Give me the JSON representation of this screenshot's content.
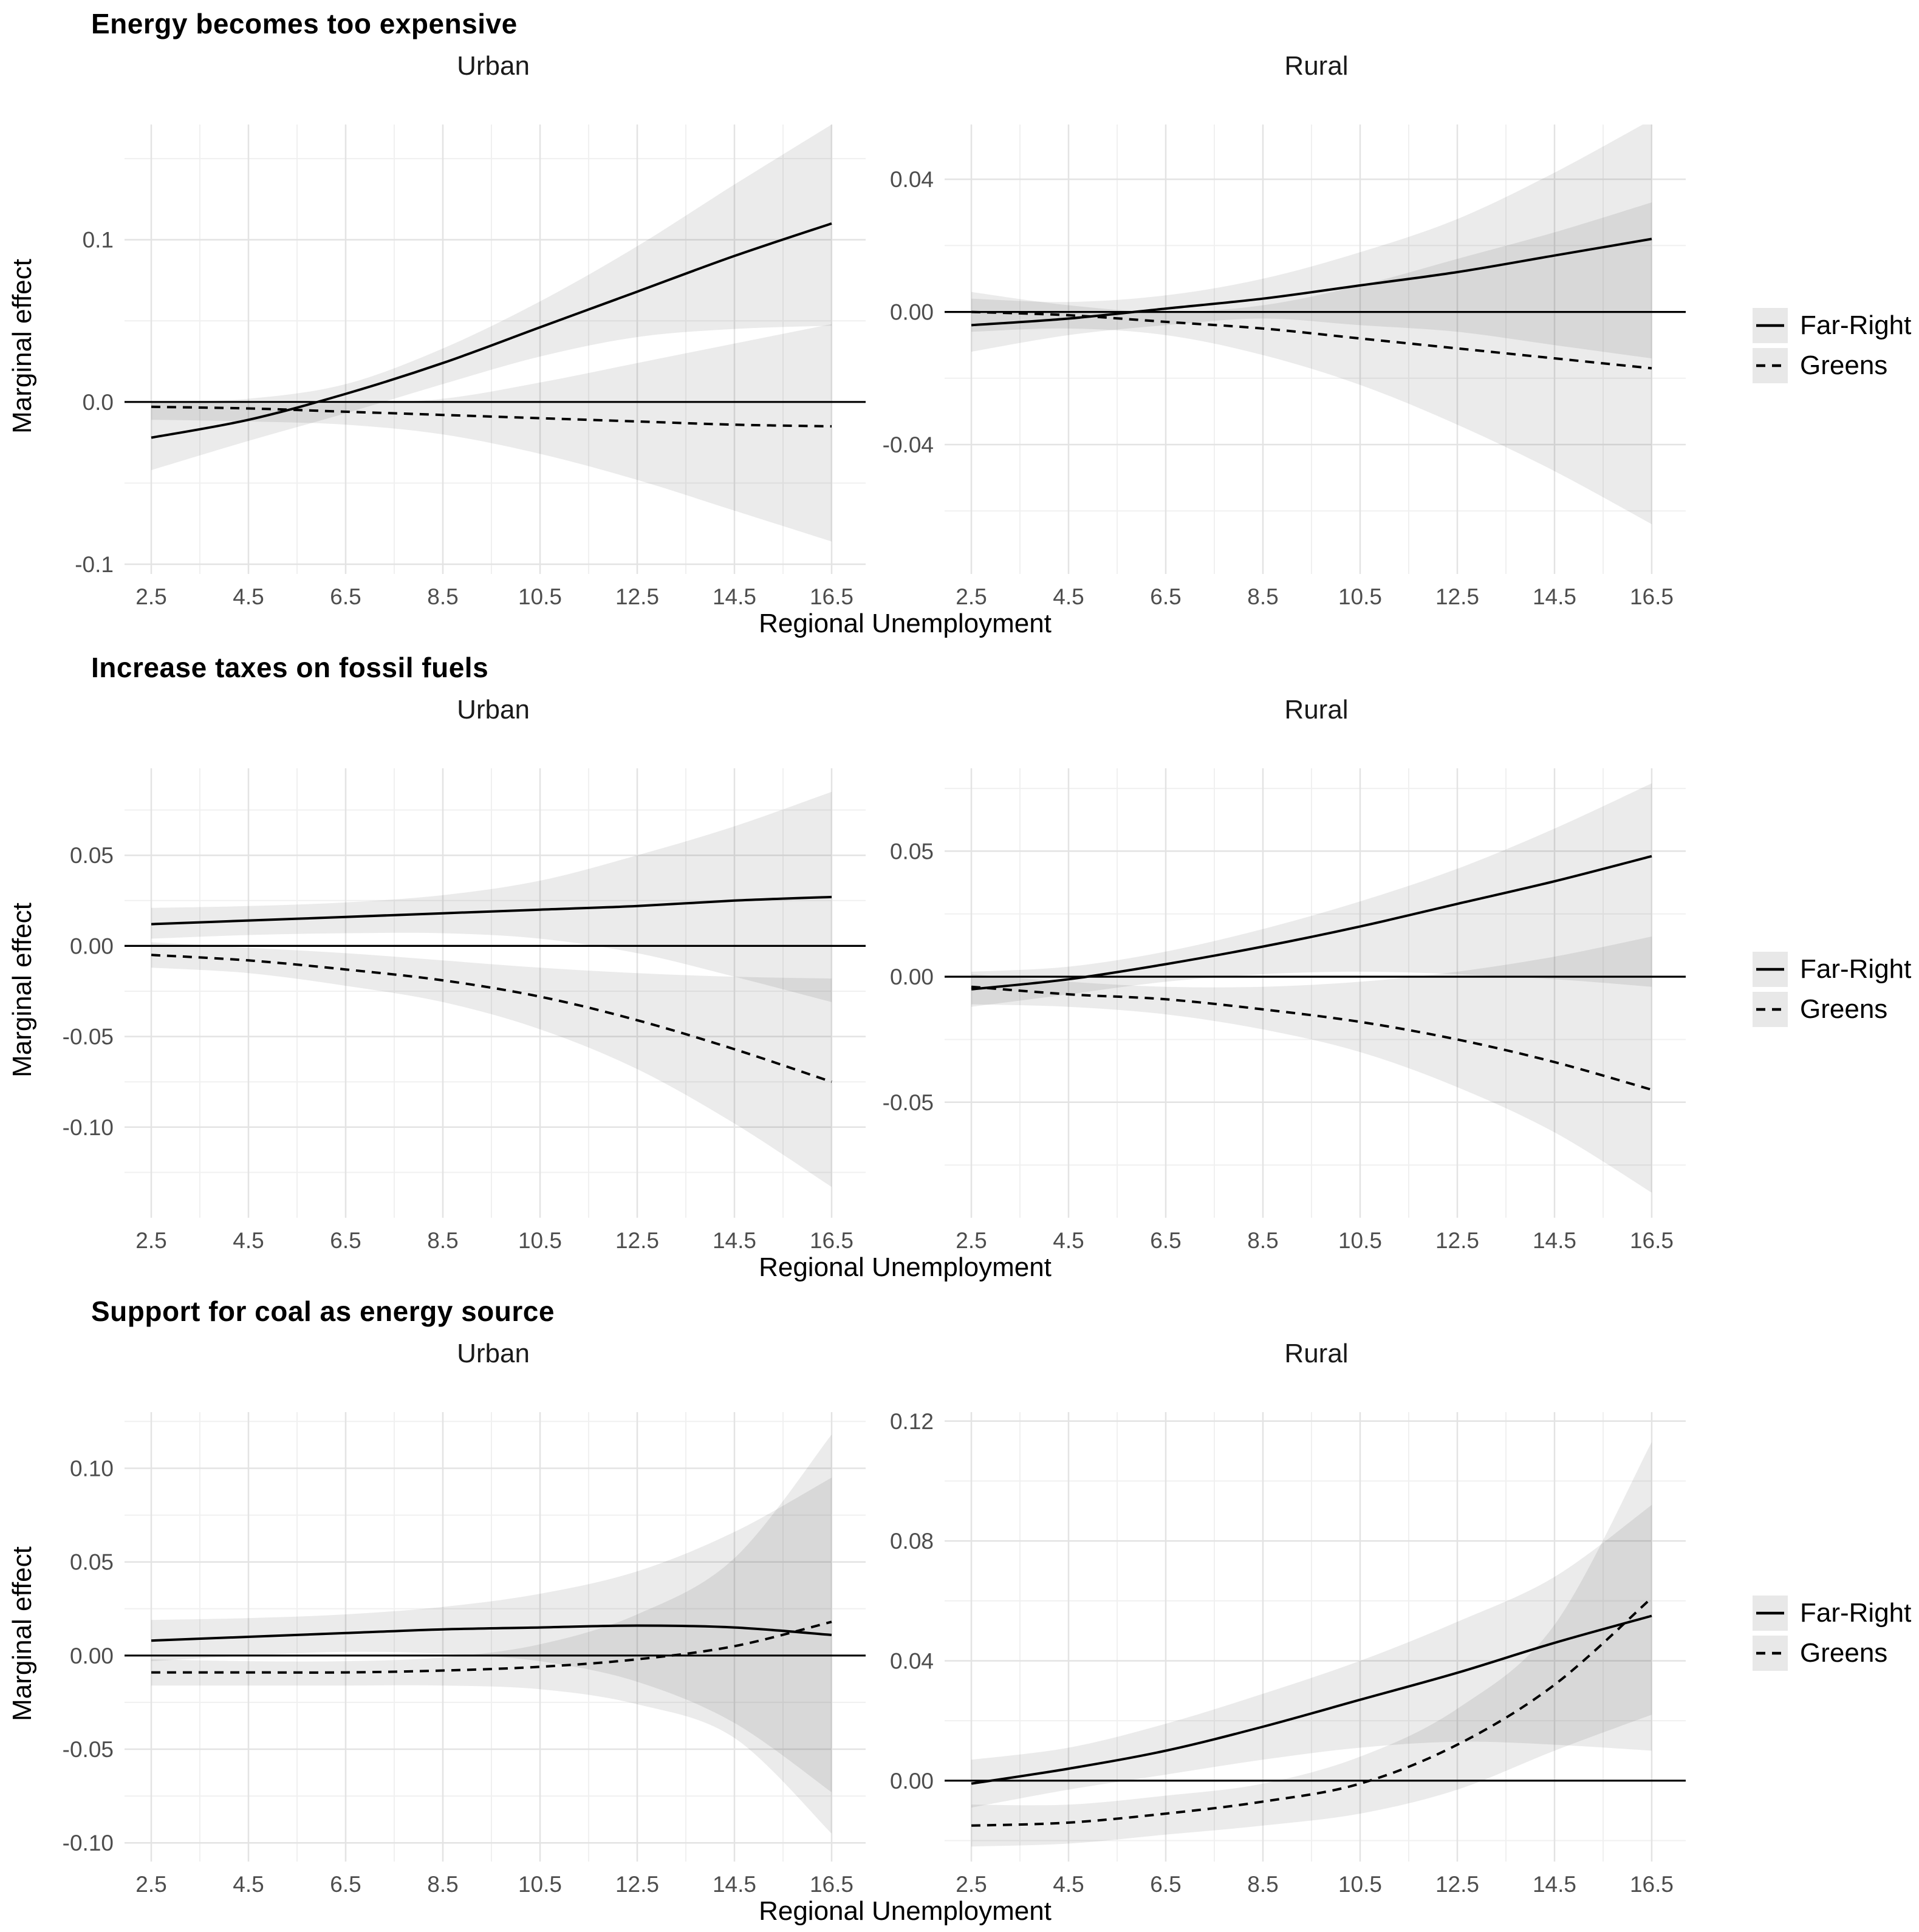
{
  "styles": {
    "background": "#ffffff",
    "line_color": "#000000",
    "ribbon_color": "#1a1a1a",
    "ribbon_opacity": 0.085,
    "grid_major": "#e3e3e3",
    "grid_minor": "#f0f0f0",
    "tick_text": "#4d4d4d",
    "legend_key_bg": "#e8e8e8"
  },
  "chart_data": [
    {
      "type": "line",
      "title": "Energy becomes too expensive",
      "xlabel": "Regional Unemployment",
      "ylabel": "Marginal effect",
      "legend": [
        {
          "name": "Far-Right",
          "style": "solid"
        },
        {
          "name": "Greens",
          "style": "dashed"
        }
      ],
      "x": [
        2.5,
        4.5,
        6.5,
        8.5,
        10.5,
        12.5,
        14.5,
        16.5
      ],
      "x_tick_labels": [
        "2.5",
        "4.5",
        "6.5",
        "8.5",
        "10.5",
        "12.5",
        "14.5",
        "16.5"
      ],
      "x_minor": [
        3.5,
        5.5,
        7.5,
        9.5,
        11.5,
        13.5,
        15.5
      ],
      "panels": [
        {
          "title": "Urban",
          "y_domain": [
            -0.106,
            0.171
          ],
          "y_ticks": [
            {
              "label": "0.1",
              "value": 0.1
            },
            {
              "label": "0.0",
              "value": 0.0
            },
            {
              "label": "-0.1",
              "value": -0.1
            }
          ],
          "y_minor": [
            0.15,
            0.05,
            -0.05
          ],
          "series": [
            {
              "name": "Far-Right",
              "dash": false,
              "y": [
                -0.022,
                -0.011,
                0.005,
                0.024,
                0.046,
                0.068,
                0.09,
                0.11
              ],
              "hi": [
                0.0,
                0.002,
                0.011,
                0.033,
                0.062,
                0.096,
                0.134,
                0.171
              ],
              "lo": [
                -0.042,
                -0.024,
                -0.007,
                0.011,
                0.028,
                0.04,
                0.045,
                0.047
              ]
            },
            {
              "name": "Greens",
              "dash": true,
              "y": [
                -0.003,
                -0.004,
                -0.006,
                -0.008,
                -0.01,
                -0.012,
                -0.014,
                -0.015
              ],
              "hi": [
                0.0,
                -0.001,
                -0.001,
                0.002,
                0.012,
                0.024,
                0.036,
                0.048
              ],
              "lo": [
                -0.011,
                -0.012,
                -0.014,
                -0.02,
                -0.032,
                -0.048,
                -0.067,
                -0.086
              ]
            }
          ]
        },
        {
          "title": "Rural",
          "y_domain": [
            -0.079,
            0.0565
          ],
          "y_ticks": [
            {
              "label": "0.04",
              "value": 0.04
            },
            {
              "label": "0.00",
              "value": 0.0
            },
            {
              "label": "-0.04",
              "value": -0.04
            }
          ],
          "y_minor": [
            0.02,
            -0.02,
            -0.06
          ],
          "series": [
            {
              "name": "Far-Right",
              "dash": false,
              "y": [
                -0.004,
                -0.002,
                0.001,
                0.004,
                0.008,
                0.012,
                0.017,
                0.022
              ],
              "hi": [
                0.004,
                0.003,
                0.005,
                0.01,
                0.018,
                0.028,
                0.042,
                0.058
              ],
              "lo": [
                -0.012,
                -0.007,
                -0.004,
                -0.002,
                -0.004,
                -0.006,
                -0.01,
                -0.014
              ]
            },
            {
              "name": "Greens",
              "dash": true,
              "y": [
                0.0,
                -0.001,
                -0.003,
                -0.005,
                -0.008,
                -0.011,
                -0.014,
                -0.017
              ],
              "hi": [
                0.006,
                0.002,
                0.0,
                0.002,
                0.008,
                0.016,
                0.024,
                0.033
              ],
              "lo": [
                -0.006,
                -0.005,
                -0.007,
                -0.013,
                -0.022,
                -0.034,
                -0.048,
                -0.064
              ]
            }
          ]
        }
      ]
    },
    {
      "type": "line",
      "title": "Increase taxes on fossil fuels",
      "xlabel": "Regional Unemployment",
      "ylabel": "Marginal effect",
      "legend": [
        {
          "name": "Far-Right",
          "style": "solid"
        },
        {
          "name": "Greens",
          "style": "dashed"
        }
      ],
      "x": [
        2.5,
        4.5,
        6.5,
        8.5,
        10.5,
        12.5,
        14.5,
        16.5
      ],
      "x_tick_labels": [
        "2.5",
        "4.5",
        "6.5",
        "8.5",
        "10.5",
        "12.5",
        "14.5",
        "16.5"
      ],
      "x_minor": [
        3.5,
        5.5,
        7.5,
        9.5,
        11.5,
        13.5,
        15.5
      ],
      "panels": [
        {
          "title": "Urban",
          "y_domain": [
            -0.15,
            0.098
          ],
          "y_ticks": [
            {
              "label": "0.05",
              "value": 0.05
            },
            {
              "label": "0.00",
              "value": 0.0
            },
            {
              "label": "-0.05",
              "value": -0.05
            },
            {
              "label": "-0.10",
              "value": -0.1
            }
          ],
          "y_minor": [
            0.075,
            0.025,
            -0.025,
            -0.075,
            -0.125
          ],
          "series": [
            {
              "name": "Far-Right",
              "dash": false,
              "y": [
                0.012,
                0.014,
                0.016,
                0.018,
                0.02,
                0.022,
                0.025,
                0.027
              ],
              "hi": [
                0.021,
                0.022,
                0.024,
                0.028,
                0.036,
                0.05,
                0.066,
                0.085
              ],
              "lo": [
                0.004,
                0.006,
                0.007,
                0.007,
                0.004,
                -0.004,
                -0.017,
                -0.031
              ]
            },
            {
              "name": "Greens",
              "dash": true,
              "y": [
                -0.005,
                -0.008,
                -0.013,
                -0.019,
                -0.028,
                -0.041,
                -0.057,
                -0.075
              ],
              "hi": [
                0.002,
                -0.001,
                -0.004,
                -0.008,
                -0.012,
                -0.015,
                -0.017,
                -0.018
              ],
              "lo": [
                -0.012,
                -0.015,
                -0.022,
                -0.031,
                -0.046,
                -0.068,
                -0.098,
                -0.133
              ]
            }
          ]
        },
        {
          "title": "Rural",
          "y_domain": [
            -0.096,
            0.083
          ],
          "y_ticks": [
            {
              "label": "0.05",
              "value": 0.05
            },
            {
              "label": "0.00",
              "value": 0.0
            },
            {
              "label": "-0.05",
              "value": -0.05
            }
          ],
          "y_minor": [
            0.075,
            0.025,
            -0.025,
            -0.075
          ],
          "series": [
            {
              "name": "Far-Right",
              "dash": false,
              "y": [
                -0.005,
                -0.001,
                0.005,
                0.012,
                0.02,
                0.029,
                0.038,
                0.048
              ],
              "hi": [
                0.002,
                0.004,
                0.01,
                0.019,
                0.03,
                0.043,
                0.059,
                0.077
              ],
              "lo": [
                -0.012,
                -0.007,
                -0.002,
                0.001,
                0.002,
                0.001,
                -0.001,
                -0.004
              ]
            },
            {
              "name": "Greens",
              "dash": true,
              "y": [
                -0.004,
                -0.007,
                -0.009,
                -0.013,
                -0.018,
                -0.025,
                -0.034,
                -0.045
              ],
              "hi": [
                0.001,
                -0.002,
                -0.004,
                -0.004,
                -0.002,
                0.002,
                0.008,
                0.016
              ],
              "lo": [
                -0.011,
                -0.012,
                -0.015,
                -0.021,
                -0.03,
                -0.044,
                -0.062,
                -0.086
              ]
            }
          ]
        }
      ]
    },
    {
      "type": "line",
      "title": "Support for coal as energy source",
      "xlabel": "Regional Unemployment",
      "ylabel": "Marginal effect",
      "legend": [
        {
          "name": "Far-Right",
          "style": "solid"
        },
        {
          "name": "Greens",
          "style": "dashed"
        }
      ],
      "x": [
        2.5,
        4.5,
        6.5,
        8.5,
        10.5,
        12.5,
        14.5,
        16.5
      ],
      "x_tick_labels": [
        "2.5",
        "4.5",
        "6.5",
        "8.5",
        "10.5",
        "12.5",
        "14.5",
        "16.5"
      ],
      "x_minor": [
        3.5,
        5.5,
        7.5,
        9.5,
        11.5,
        13.5,
        15.5
      ],
      "panels": [
        {
          "title": "Urban",
          "y_domain": [
            -0.11,
            0.13
          ],
          "y_ticks": [
            {
              "label": "0.10",
              "value": 0.1
            },
            {
              "label": "0.05",
              "value": 0.05
            },
            {
              "label": "0.00",
              "value": 0.0
            },
            {
              "label": "-0.05",
              "value": -0.05
            },
            {
              "label": "-0.10",
              "value": -0.1
            }
          ],
          "y_minor": [
            0.125,
            0.075,
            0.025,
            -0.025,
            -0.075
          ],
          "series": [
            {
              "name": "Far-Right",
              "dash": false,
              "y": [
                0.008,
                0.01,
                0.012,
                0.014,
                0.015,
                0.016,
                0.015,
                0.011
              ],
              "hi": [
                0.019,
                0.02,
                0.022,
                0.026,
                0.033,
                0.045,
                0.066,
                0.095
              ],
              "lo": [
                -0.003,
                0.0,
                0.002,
                0.001,
                -0.003,
                -0.014,
                -0.036,
                -0.073
              ]
            },
            {
              "name": "Greens",
              "dash": true,
              "y": [
                -0.009,
                -0.009,
                -0.009,
                -0.008,
                -0.006,
                -0.002,
                0.005,
                0.018
              ],
              "hi": [
                -0.002,
                -0.003,
                -0.003,
                -0.001,
                0.006,
                0.022,
                0.052,
                0.118
              ],
              "lo": [
                -0.016,
                -0.016,
                -0.016,
                -0.016,
                -0.018,
                -0.026,
                -0.044,
                -0.095
              ]
            }
          ]
        },
        {
          "title": "Rural",
          "y_domain": [
            -0.027,
            0.123
          ],
          "y_ticks": [
            {
              "label": "0.12",
              "value": 0.12
            },
            {
              "label": "0.08",
              "value": 0.08
            },
            {
              "label": "0.04",
              "value": 0.04
            },
            {
              "label": "0.00",
              "value": 0.0
            }
          ],
          "y_minor": [
            0.1,
            0.06,
            0.02,
            -0.02
          ],
          "series": [
            {
              "name": "Far-Right",
              "dash": false,
              "y": [
                -0.001,
                0.004,
                0.01,
                0.018,
                0.027,
                0.036,
                0.046,
                0.055
              ],
              "hi": [
                0.007,
                0.011,
                0.019,
                0.029,
                0.04,
                0.053,
                0.068,
                0.092
              ],
              "lo": [
                -0.009,
                -0.003,
                0.002,
                0.007,
                0.011,
                0.013,
                0.012,
                0.01
              ]
            },
            {
              "name": "Greens",
              "dash": true,
              "y": [
                -0.015,
                -0.014,
                -0.011,
                -0.007,
                -0.001,
                0.012,
                0.032,
                0.061
              ],
              "hi": [
                -0.008,
                -0.008,
                -0.005,
                -0.001,
                0.008,
                0.024,
                0.052,
                0.113
              ],
              "lo": [
                -0.022,
                -0.021,
                -0.018,
                -0.015,
                -0.011,
                -0.003,
                0.01,
                0.022
              ]
            }
          ]
        }
      ]
    }
  ]
}
